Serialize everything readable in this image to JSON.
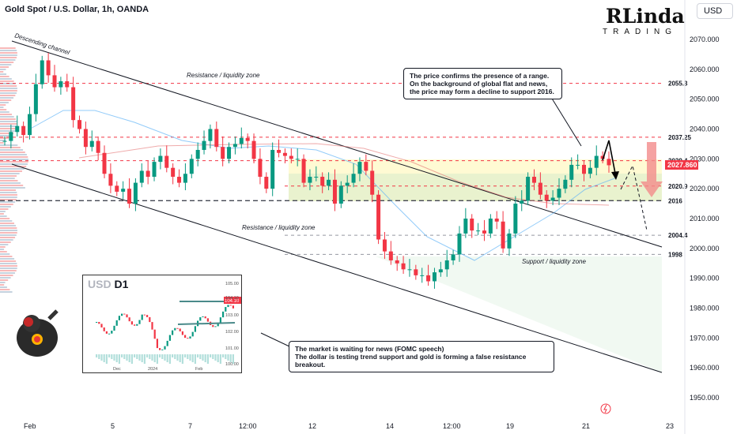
{
  "header": {
    "title": "Gold Spot / U.S. Dollar, 1h, OANDA",
    "currency_button": "USD"
  },
  "logo": {
    "main": "RLinda",
    "sub": "TRADING"
  },
  "chart_data": {
    "type": "candlestick",
    "y_axis": {
      "range": [
        1943,
        2078
      ],
      "ticks": [
        "2070.000",
        "2060.000",
        "2050.000",
        "2040.000",
        "2030.000",
        "2020.000",
        "2010.000",
        "2000.000",
        "1990.000",
        "1980.000",
        "1970.000",
        "1960.000",
        "1950.000"
      ],
      "tick_values": [
        2070,
        2060,
        2050,
        2040,
        2030,
        2020,
        2010,
        2000,
        1990,
        1980,
        1970,
        1960,
        1950
      ]
    },
    "x_axis": {
      "ticks": [
        "Feb",
        "5",
        "7",
        "12:00",
        "12",
        "14",
        "12:00",
        "19",
        "21",
        "23"
      ]
    },
    "last_price": {
      "label": "2027.860",
      "value": 2027.86,
      "color": "#f23645"
    },
    "levels": [
      {
        "label": "2055.3",
        "value": 2055.3,
        "style": "dashed",
        "color": "#f23645"
      },
      {
        "label": "2037.25",
        "value": 2037.25,
        "style": "dashed",
        "color": "#f23645"
      },
      {
        "label": "2029.4",
        "value": 2029.4,
        "style": "dashed",
        "color": "#f23645"
      },
      {
        "label": "2020.9",
        "value": 2020.9,
        "style": "dashed",
        "color": "#f23645"
      },
      {
        "label": "2016",
        "value": 2016,
        "style": "dashed-bold",
        "color": "#434651"
      },
      {
        "label": "2004.4",
        "value": 2004.4,
        "style": "dashed",
        "color": "#9598a1"
      },
      {
        "label": "1998",
        "value": 1998,
        "style": "dashed",
        "color": "#9598a1"
      }
    ],
    "zones": [
      {
        "label": "Resistance / liquidity zone"
      },
      {
        "label": "Resistance / liquidity zone"
      },
      {
        "label": "Support / liquidity zone"
      }
    ],
    "annotations": {
      "channel": "Descending channel",
      "callout_top": "The price confirms the presence of a range.\nOn the background of global flat and news,\nthe price may form a decline to support 2016.",
      "callout_bottom": "The market is waiting for news (FOMC speech)\nThe dollar is testing trend support and gold is forming a false resistance breakout."
    },
    "series": [
      {
        "points": [
          2036,
          2039,
          2041,
          2038,
          2045,
          2055,
          2063,
          2058,
          2054,
          2056,
          2054,
          2043,
          2040,
          2034,
          2036,
          2032,
          2025,
          2021,
          2019,
          2020,
          2015,
          2022,
          2026,
          2024,
          2029,
          2031,
          2027,
          2024,
          2022,
          2025,
          2030,
          2033,
          2036,
          2040,
          2034,
          2030,
          2034,
          2035,
          2037,
          2036,
          2030,
          2024,
          2020,
          2033,
          2032,
          2031,
          2030,
          2030,
          2022,
          2024,
          2024,
          2021,
          2023,
          2015,
          2021,
          2022,
          2025,
          2029,
          2026,
          2018,
          2003,
          1999,
          1996,
          1995,
          1993,
          1993,
          1991,
          1991,
          1989,
          1992,
          1993,
          1996,
          1998,
          2005,
          2010,
          2006,
          2006,
          2005,
          2010,
          2009,
          2000,
          2005,
          2015,
          2016,
          2024,
          2022,
          2018,
          2016,
          2017,
          2020,
          2023,
          2028,
          2028,
          2025,
          2027,
          2031,
          2030,
          2027.86
        ]
      }
    ],
    "inset": {
      "title_prefix": "USD",
      "title_suffix": "D1",
      "y_ticks": [
        "105.00",
        "104.10",
        "103.00",
        "102.00",
        "101.00",
        "100.00"
      ],
      "x_ticks": [
        "Dec",
        "2024",
        "Feb"
      ],
      "last_label": "104.10"
    }
  }
}
